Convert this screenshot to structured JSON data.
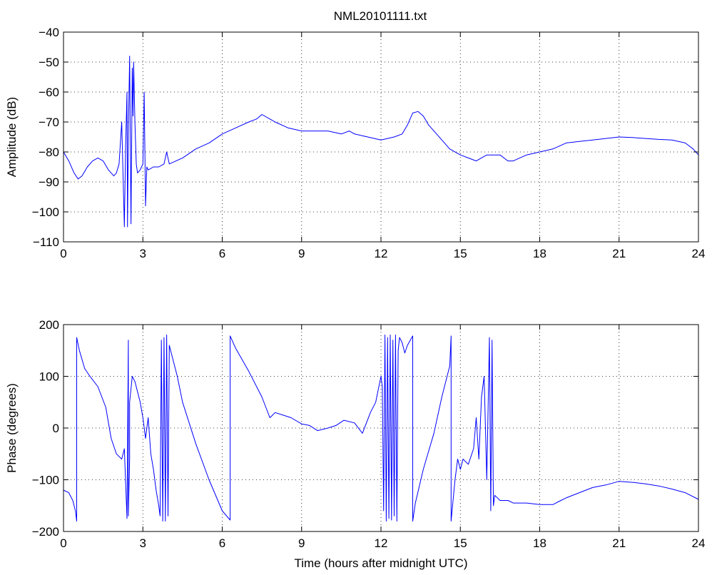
{
  "chart_data": [
    {
      "type": "line",
      "title": "NML20101111.txt",
      "xlabel": "",
      "ylabel": "Amplitude (dB)",
      "xlim": [
        0,
        24
      ],
      "ylim": [
        -110,
        -40
      ],
      "xticks": [
        0,
        3,
        6,
        9,
        12,
        15,
        18,
        21,
        24
      ],
      "yticks": [
        -110,
        -100,
        -90,
        -80,
        -70,
        -60,
        -50,
        -40
      ],
      "ytick_labels": [
        "−110",
        "−100",
        "−90",
        "−80",
        "−70",
        "−60",
        "−50",
        "−40"
      ],
      "grid": true,
      "color": "#0000ff",
      "series": [
        {
          "x": [
            0,
            0.2,
            0.4,
            0.55,
            0.7,
            0.9,
            1.1,
            1.3,
            1.5,
            1.7,
            1.9,
            2.0,
            2.1,
            2.2,
            2.3,
            2.35,
            2.4,
            2.42,
            2.45,
            2.5,
            2.55,
            2.6,
            2.63,
            2.65,
            2.7,
            2.75,
            2.8,
            2.9,
            3.0,
            3.05,
            3.1,
            3.15,
            3.2,
            3.4,
            3.6,
            3.8,
            3.9,
            4.0,
            4.5,
            5.0,
            5.5,
            6.0,
            6.5,
            7.0,
            7.3,
            7.5,
            7.8,
            8.0,
            8.5,
            9.0,
            9.5,
            10.0,
            10.5,
            10.8,
            11.0,
            11.5,
            12.0,
            12.5,
            12.8,
            13.0,
            13.2,
            13.4,
            13.6,
            13.8,
            14.0,
            14.3,
            14.6,
            15.0,
            15.3,
            15.6,
            16.0,
            16.5,
            16.8,
            17.0,
            17.5,
            18.0,
            18.5,
            19.0,
            19.5,
            20.0,
            20.5,
            21.0,
            21.5,
            22.0,
            22.5,
            23.0,
            23.5,
            23.8,
            24.0
          ],
          "y": [
            -80,
            -83,
            -87,
            -89,
            -88,
            -85,
            -83,
            -82,
            -83,
            -86,
            -88,
            -87,
            -84,
            -70,
            -105,
            -78,
            -60,
            -105,
            -75,
            -48,
            -104,
            -52,
            -68,
            -50,
            -70,
            -84,
            -87,
            -86,
            -84,
            -60,
            -98,
            -85,
            -86,
            -85,
            -85,
            -84,
            -80,
            -84,
            -82,
            -79,
            -77,
            -74,
            -72,
            -70,
            -69,
            -67.5,
            -69,
            -70,
            -72,
            -73,
            -73,
            -73,
            -74,
            -73,
            -74,
            -75,
            -76,
            -75,
            -74,
            -71,
            -67,
            -66.5,
            -68,
            -71,
            -73,
            -76,
            -79,
            -81,
            -82,
            -83,
            -81,
            -81,
            -83,
            -83,
            -81,
            -80,
            -79,
            -77,
            -76.5,
            -76,
            -75.5,
            -75,
            -75.2,
            -75.5,
            -75.8,
            -76,
            -77,
            -79,
            -81
          ]
        }
      ]
    },
    {
      "type": "line",
      "title": "",
      "xlabel": "Time (hours after midnight UTC)",
      "ylabel": "Phase (degrees)",
      "xlim": [
        0,
        24
      ],
      "ylim": [
        -200,
        200
      ],
      "xticks": [
        0,
        3,
        6,
        9,
        12,
        15,
        18,
        21,
        24
      ],
      "yticks": [
        -200,
        -100,
        0,
        100,
        200
      ],
      "ytick_labels": [
        "−200",
        "−100",
        "0",
        "100",
        "200"
      ],
      "grid": true,
      "color": "#0000ff",
      "series": [
        {
          "x": [
            0,
            0.2,
            0.35,
            0.45,
            0.5,
            0.5,
            0.6,
            0.8,
            1.0,
            1.3,
            1.6,
            1.8,
            2.0,
            2.2,
            2.3,
            2.4,
            2.45,
            2.45,
            2.5,
            2.5,
            2.6,
            2.7,
            2.9,
            3.0,
            3.1,
            3.2,
            3.3,
            3.4,
            3.5,
            3.6,
            3.65,
            3.7,
            3.75,
            3.8,
            3.85,
            3.9,
            3.95,
            4.0,
            4.1,
            4.3,
            4.5,
            5.0,
            5.5,
            6.0,
            6.3,
            6.3,
            6.5,
            7.0,
            7.5,
            7.8,
            8.0,
            8.3,
            8.6,
            9.0,
            9.3,
            9.6,
            10.0,
            10.3,
            10.6,
            11.0,
            11.3,
            11.6,
            11.8,
            12.0,
            12.05,
            12.1,
            12.15,
            12.2,
            12.25,
            12.3,
            12.35,
            12.4,
            12.45,
            12.5,
            12.55,
            12.6,
            12.65,
            12.7,
            12.8,
            12.9,
            13.0,
            13.2,
            13.2,
            13.3,
            13.6,
            14.0,
            14.3,
            14.6,
            14.65,
            14.65,
            14.8,
            14.9,
            15.0,
            15.1,
            15.3,
            15.5,
            15.6,
            15.7,
            15.8,
            15.9,
            16.0,
            16.1,
            16.15,
            16.2,
            16.25,
            16.3,
            16.5,
            16.8,
            17.0,
            17.5,
            18.0,
            18.5,
            18.8,
            19.0,
            19.5,
            20.0,
            20.5,
            21.0,
            21.5,
            22.0,
            22.5,
            23.0,
            23.5,
            24.0
          ],
          "y": [
            -120,
            -125,
            -140,
            -160,
            -180,
            175,
            150,
            115,
            100,
            80,
            40,
            -20,
            -50,
            -60,
            -40,
            -175,
            170,
            -170,
            -60,
            50,
            100,
            90,
            50,
            20,
            -20,
            20,
            -50,
            -80,
            -120,
            -150,
            -170,
            170,
            -180,
            175,
            -180,
            180,
            -170,
            160,
            140,
            100,
            50,
            -30,
            -100,
            -160,
            -178,
            178,
            155,
            110,
            60,
            20,
            30,
            25,
            20,
            8,
            5,
            -5,
            0,
            5,
            15,
            10,
            -10,
            30,
            50,
            100,
            80,
            -160,
            180,
            -180,
            175,
            -175,
            180,
            -178,
            170,
            -170,
            180,
            -180,
            150,
            175,
            165,
            145,
            160,
            178,
            -180,
            -145,
            -80,
            -10,
            60,
            120,
            178,
            -180,
            -100,
            -60,
            -80,
            -60,
            -70,
            -40,
            20,
            -60,
            60,
            100,
            -100,
            175,
            -160,
            170,
            -150,
            -130,
            -140,
            -140,
            -145,
            -145,
            -148,
            -148,
            -140,
            -135,
            -125,
            -115,
            -110,
            -103,
            -105,
            -108,
            -112,
            -118,
            -125,
            -138
          ]
        }
      ]
    }
  ]
}
